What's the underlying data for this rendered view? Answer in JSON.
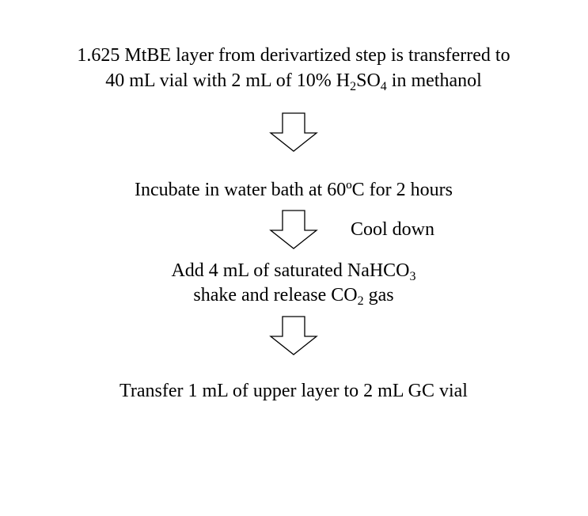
{
  "steps": [
    {
      "lines": [
        [
          {
            "text": "1.625 MtBE layer from derivartized step is transferred to"
          }
        ],
        [
          {
            "text": "40 mL vial with 2 mL of 10% H"
          },
          {
            "sub": "2"
          },
          {
            "text": "SO"
          },
          {
            "sub": "4"
          },
          {
            "text": " in methanol"
          }
        ]
      ]
    },
    {
      "lines": [
        [
          {
            "text": "Incubate in water bath at 60ºC for 2 hours"
          }
        ]
      ]
    },
    {
      "lines": [
        [
          {
            "text": "Add 4 mL of saturated NaHCO"
          },
          {
            "sub": "3"
          }
        ],
        [
          {
            "text": "shake and release CO"
          },
          {
            "sub": "2"
          },
          {
            "text": " gas"
          }
        ]
      ]
    },
    {
      "lines": [
        [
          {
            "text": "Transfer 1 mL of upper layer to 2 mL GC vial"
          }
        ]
      ]
    }
  ],
  "arrow_label": "Cool down"
}
